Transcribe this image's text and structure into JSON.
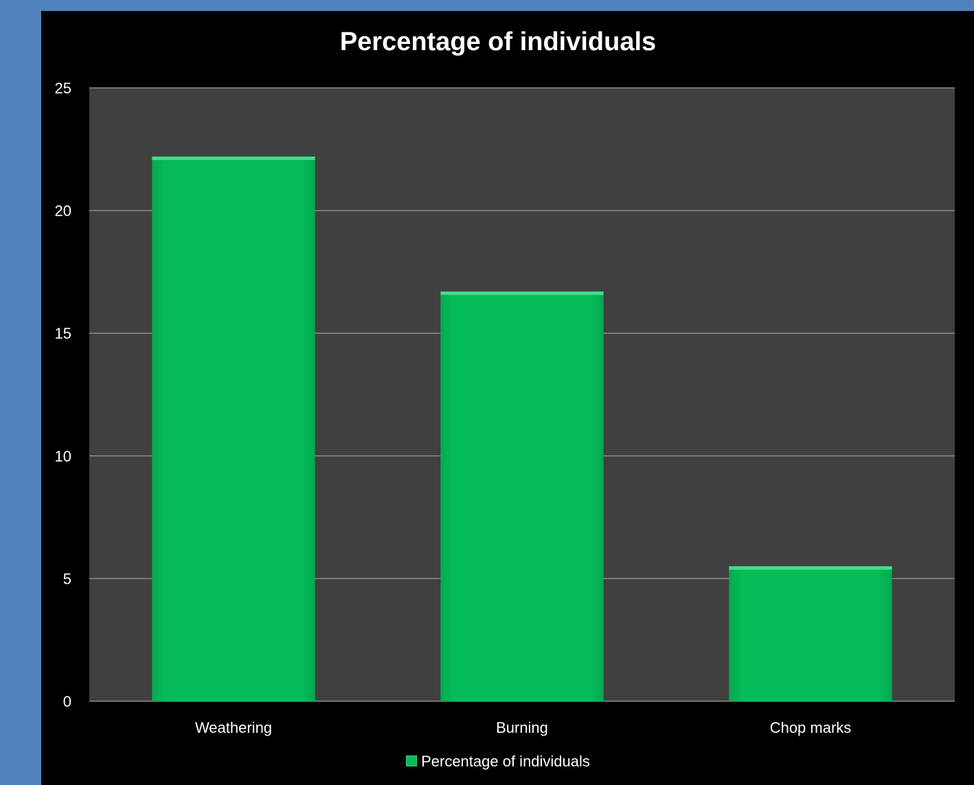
{
  "chart_data": {
    "type": "bar",
    "title": "Percentage of individuals",
    "categories": [
      "Weathering",
      "Burning",
      "Chop marks"
    ],
    "series": [
      {
        "name": "Percentage of individuals",
        "values": [
          22.2,
          16.7,
          5.5
        ]
      }
    ],
    "ylim": [
      0,
      25
    ],
    "yticks": [
      0,
      5,
      10,
      15,
      20,
      25
    ],
    "grid": true,
    "legend_position": "bottom",
    "colors": {
      "bar": "#05bc58",
      "bar_top": "#3fe08a",
      "plot_background": "#404040",
      "chart_background": "#000000",
      "outer_background": "#4f81bd",
      "gridline": "#8c8c8c",
      "text": "#ffffff"
    }
  }
}
